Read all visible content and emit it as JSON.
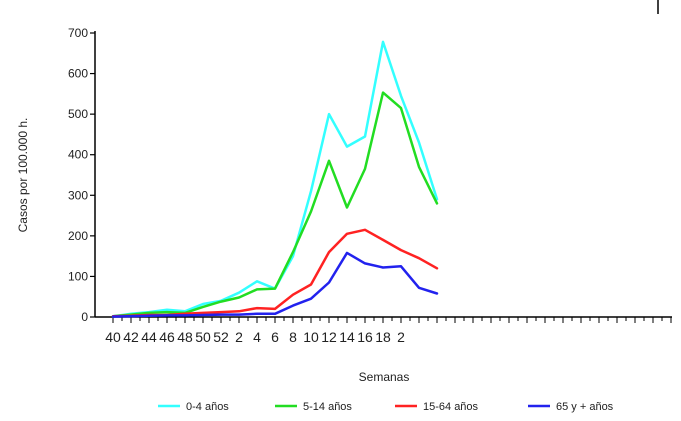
{
  "chart_data": {
    "type": "line",
    "title": "",
    "xlabel": "Semanas",
    "ylabel": "Casos por 100.000 h.",
    "ylim": [
      0,
      700
    ],
    "yticks": [
      0,
      100,
      200,
      300,
      400,
      500,
      600,
      700
    ],
    "x_tick_labels": [
      "40",
      "42",
      "44",
      "46",
      "48",
      "50",
      "52",
      "2",
      "4",
      "6",
      "8",
      "10",
      "12",
      "14",
      "16",
      "18",
      "2"
    ],
    "x": [
      "40",
      "41",
      "42",
      "43",
      "44",
      "45",
      "46",
      "47",
      "48",
      "49",
      "50",
      "51",
      "52",
      "1",
      "2",
      "3",
      "4",
      "5",
      "6"
    ],
    "grid": false,
    "legend_position": "bottom",
    "series": [
      {
        "name": "0-4 años",
        "color": "#33ffff",
        "values": [
          2,
          8,
          12,
          18,
          14,
          32,
          40,
          60,
          88,
          70,
          150,
          310,
          500,
          420,
          445,
          678,
          545,
          430,
          290
        ]
      },
      {
        "name": "5-14 años",
        "color": "#22dd22",
        "values": [
          2,
          6,
          10,
          12,
          10,
          25,
          38,
          48,
          68,
          70,
          160,
          260,
          385,
          270,
          365,
          553,
          515,
          370,
          280
        ]
      },
      {
        "name": "15-64 años",
        "color": "#ff2222",
        "values": [
          2,
          3,
          5,
          5,
          8,
          10,
          12,
          14,
          22,
          20,
          55,
          80,
          160,
          205,
          215,
          190,
          165,
          145,
          120
        ]
      },
      {
        "name": "65 y + años",
        "color": "#2222ee",
        "values": [
          1,
          2,
          3,
          4,
          4,
          5,
          6,
          6,
          8,
          8,
          28,
          45,
          85,
          158,
          132,
          122,
          125,
          72,
          58
        ]
      }
    ]
  }
}
